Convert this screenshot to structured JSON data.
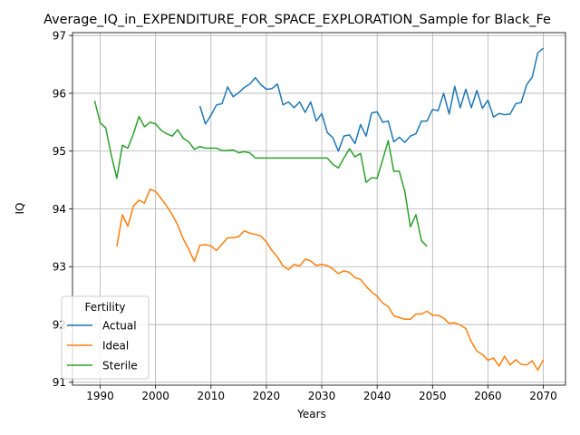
{
  "chart_data": {
    "type": "line",
    "title": "Average_IQ_in_EXPENDITURE_FOR_SPACE_EXPLORATION_Sample for Black_Fe",
    "xlabel": "Years",
    "ylabel": "IQ",
    "xlim": [
      1985,
      2074
    ],
    "ylim": [
      90.95,
      97.05
    ],
    "xticks": [
      1990,
      2000,
      2010,
      2020,
      2030,
      2040,
      2050,
      2060,
      2070
    ],
    "yticks": [
      91,
      92,
      93,
      94,
      95,
      96,
      97
    ],
    "grid": true,
    "legend": {
      "title": "Fertility",
      "position": "lower-left"
    },
    "series": [
      {
        "name": "Actual",
        "color": "#1f77b4",
        "x": [
          2008,
          2009,
          2010,
          2011,
          2012,
          2013,
          2014,
          2015,
          2016,
          2017,
          2018,
          2019,
          2020,
          2021,
          2022,
          2023,
          2024,
          2025,
          2026,
          2027,
          2028,
          2029,
          2030,
          2031,
          2032,
          2033,
          2034,
          2035,
          2036,
          2037,
          2038,
          2039,
          2040,
          2041,
          2042,
          2043,
          2044,
          2045,
          2046,
          2047,
          2048,
          2049,
          2050,
          2051,
          2052,
          2053,
          2054,
          2055,
          2056,
          2057,
          2058,
          2059,
          2060,
          2061,
          2062,
          2063,
          2064,
          2065,
          2066,
          2067,
          2068,
          2069,
          2070
        ],
        "y": [
          95.78,
          95.47,
          95.62,
          95.8,
          95.82,
          96.11,
          95.94,
          96.01,
          96.1,
          96.16,
          96.27,
          96.15,
          96.07,
          96.08,
          96.16,
          95.8,
          95.85,
          95.75,
          95.85,
          95.67,
          95.85,
          95.52,
          95.65,
          95.32,
          95.23,
          95.0,
          95.26,
          95.28,
          95.13,
          95.46,
          95.26,
          95.66,
          95.68,
          95.5,
          95.52,
          95.16,
          95.24,
          95.15,
          95.26,
          95.3,
          95.52,
          95.52,
          95.72,
          95.7,
          96.0,
          95.64,
          96.12,
          95.75,
          96.07,
          95.75,
          96.05,
          95.74,
          95.88,
          95.59,
          95.65,
          95.63,
          95.64,
          95.82,
          95.84,
          96.15,
          96.28,
          96.7,
          96.78
        ]
      },
      {
        "name": "Ideal",
        "color": "#ff7f0e",
        "x": [
          1993,
          1994,
          1995,
          1996,
          1997,
          1998,
          1999,
          2000,
          2001,
          2002,
          2003,
          2004,
          2005,
          2006,
          2007,
          2008,
          2009,
          2010,
          2011,
          2012,
          2013,
          2014,
          2015,
          2016,
          2017,
          2018,
          2019,
          2020,
          2021,
          2022,
          2023,
          2024,
          2025,
          2026,
          2027,
          2028,
          2029,
          2030,
          2031,
          2032,
          2033,
          2034,
          2035,
          2036,
          2037,
          2038,
          2039,
          2040,
          2041,
          2042,
          2043,
          2044,
          2045,
          2046,
          2047,
          2048,
          2049,
          2050,
          2051,
          2052,
          2053,
          2054,
          2055,
          2056,
          2057,
          2058,
          2059,
          2060,
          2061,
          2062,
          2063,
          2064,
          2065,
          2066,
          2067,
          2068,
          2069,
          2070
        ],
        "y": [
          93.35,
          93.9,
          93.7,
          94.05,
          94.15,
          94.1,
          94.34,
          94.3,
          94.18,
          94.05,
          93.9,
          93.72,
          93.48,
          93.3,
          93.09,
          93.37,
          93.38,
          93.36,
          93.28,
          93.39,
          93.5,
          93.5,
          93.52,
          93.62,
          93.58,
          93.56,
          93.53,
          93.43,
          93.28,
          93.17,
          93.01,
          92.95,
          93.04,
          93.01,
          93.13,
          93.1,
          93.02,
          93.04,
          93.02,
          92.96,
          92.88,
          92.93,
          92.9,
          92.81,
          92.78,
          92.66,
          92.56,
          92.49,
          92.37,
          92.31,
          92.15,
          92.12,
          92.09,
          92.09,
          92.18,
          92.18,
          92.23,
          92.16,
          92.16,
          92.11,
          92.02,
          92.03,
          91.99,
          91.93,
          91.7,
          91.54,
          91.48,
          91.38,
          91.42,
          91.28,
          91.45,
          91.3,
          91.39,
          91.31,
          91.3,
          91.37,
          91.21,
          91.39
        ]
      },
      {
        "name": "Sterile",
        "color": "#2ca02c",
        "x": [
          1989,
          1990,
          1991,
          1992,
          1993,
          1994,
          1995,
          1996,
          1997,
          1998,
          1999,
          2000,
          2001,
          2002,
          2003,
          2004,
          2005,
          2006,
          2007,
          2008,
          2009,
          2010,
          2011,
          2012,
          2013,
          2014,
          2015,
          2016,
          2017,
          2018,
          2019,
          2020,
          2021,
          2022,
          2023,
          2024,
          2025,
          2026,
          2027,
          2028,
          2029,
          2030,
          2031,
          2032,
          2033,
          2034,
          2035,
          2036,
          2037,
          2038,
          2039,
          2040,
          2041,
          2042,
          2043,
          2044,
          2045,
          2046,
          2047,
          2048,
          2049
        ],
        "y": [
          95.87,
          95.49,
          95.4,
          94.93,
          94.53,
          95.1,
          95.05,
          95.3,
          95.6,
          95.42,
          95.5,
          95.47,
          95.36,
          95.3,
          95.26,
          95.37,
          95.22,
          95.16,
          95.03,
          95.08,
          95.05,
          95.05,
          95.05,
          95.01,
          95.01,
          95.02,
          94.97,
          94.99,
          94.97,
          94.88,
          94.88,
          94.88,
          94.88,
          94.88,
          94.88,
          94.88,
          94.88,
          94.88,
          94.88,
          94.88,
          94.88,
          94.88,
          94.88,
          94.77,
          94.71,
          94.88,
          95.04,
          94.9,
          94.96,
          94.46,
          94.54,
          94.53,
          94.85,
          95.18,
          94.65,
          94.65,
          94.3,
          93.69,
          93.9,
          93.45,
          93.35
        ]
      }
    ]
  }
}
